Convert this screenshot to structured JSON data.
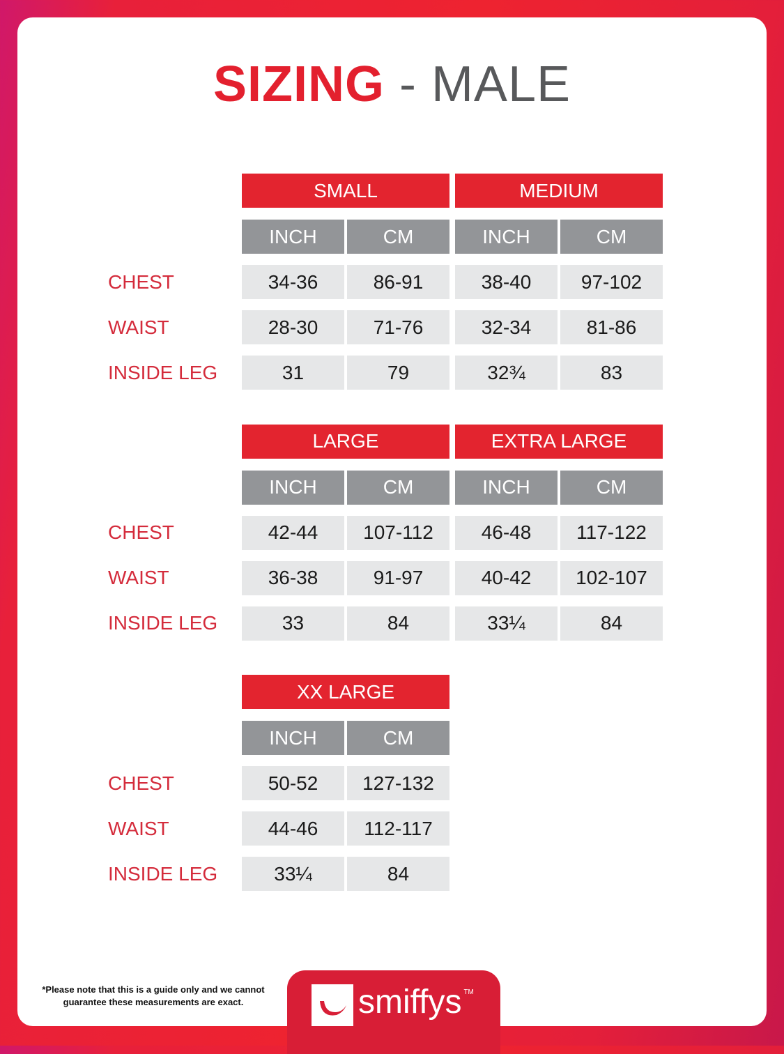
{
  "title": {
    "main": "SIZING",
    "sub": " - MALE"
  },
  "row_labels": [
    "CHEST",
    "WAIST",
    "INSIDE LEG"
  ],
  "unit_labels": [
    "INCH",
    "CM"
  ],
  "sizes": [
    {
      "name": "SMALL",
      "values": [
        [
          "34-36",
          "86-91"
        ],
        [
          "28-30",
          "71-76"
        ],
        [
          "31",
          "79"
        ]
      ]
    },
    {
      "name": "MEDIUM",
      "values": [
        [
          "38-40",
          "97-102"
        ],
        [
          "32-34",
          "81-86"
        ],
        [
          "32¾",
          "83"
        ]
      ]
    },
    {
      "name": "LARGE",
      "values": [
        [
          "42-44",
          "107-112"
        ],
        [
          "36-38",
          "91-97"
        ],
        [
          "33",
          "84"
        ]
      ]
    },
    {
      "name": "EXTRA LARGE",
      "values": [
        [
          "46-48",
          "117-122"
        ],
        [
          "40-42",
          "102-107"
        ],
        [
          "33¼",
          "84"
        ]
      ]
    },
    {
      "name": "XX LARGE",
      "values": [
        [
          "50-52",
          "127-132"
        ],
        [
          "44-46",
          "112-117"
        ],
        [
          "33¼",
          "84"
        ]
      ]
    }
  ],
  "footer": {
    "note_line1": "*Please note that this is a guide only and we cannot",
    "note_line2": "guarantee these measurements are exact.",
    "brand": "smiffys",
    "trademark": "TM"
  },
  "colors": {
    "accent": "#e3242f",
    "unit_header": "#939598",
    "cell": "#e6e7e8",
    "label": "#d42b3b"
  }
}
